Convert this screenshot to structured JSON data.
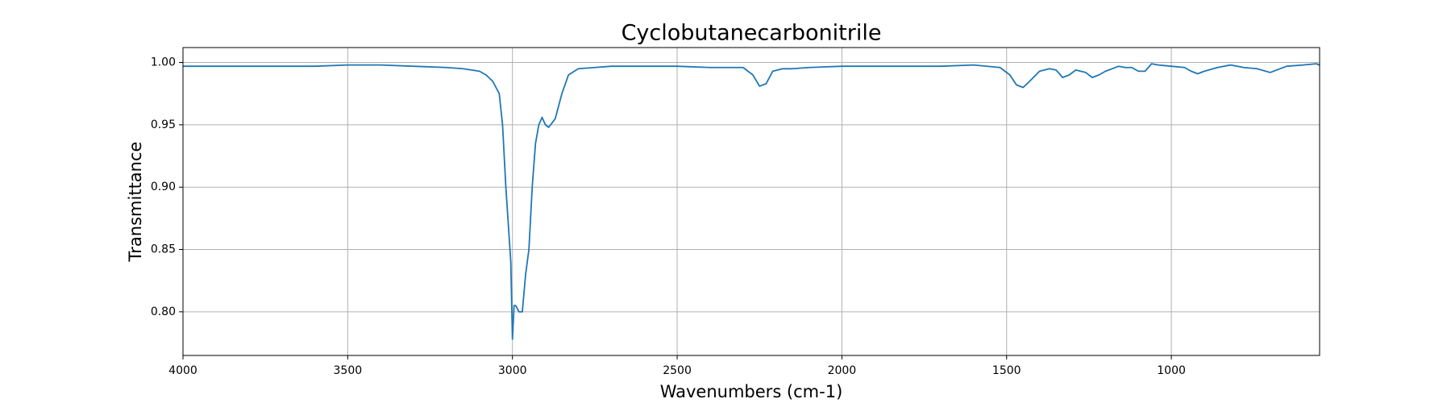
{
  "chart_data": {
    "type": "line",
    "title": "Cyclobutanecarbonitrile",
    "x_label": "Wavenumbers (cm-1)",
    "y_label": "Transmittance",
    "x": [
      4000,
      3950,
      3900,
      3800,
      3700,
      3600,
      3500,
      3400,
      3300,
      3200,
      3150,
      3100,
      3080,
      3060,
      3040,
      3030,
      3020,
      3010,
      3005,
      3000,
      2995,
      2990,
      2980,
      2970,
      2960,
      2950,
      2940,
      2930,
      2920,
      2910,
      2900,
      2890,
      2870,
      2850,
      2830,
      2800,
      2750,
      2700,
      2600,
      2500,
      2400,
      2300,
      2270,
      2250,
      2230,
      2210,
      2180,
      2150,
      2100,
      2000,
      1900,
      1800,
      1700,
      1600,
      1520,
      1490,
      1470,
      1450,
      1430,
      1400,
      1370,
      1350,
      1330,
      1310,
      1290,
      1260,
      1240,
      1220,
      1200,
      1180,
      1160,
      1140,
      1120,
      1100,
      1080,
      1060,
      1040,
      1000,
      960,
      940,
      920,
      900,
      860,
      820,
      780,
      740,
      700,
      680,
      650,
      600,
      560,
      550
    ],
    "series": [
      {
        "color": "#1f77b4",
        "values": [
          0.997,
          0.997,
          0.997,
          0.997,
          0.997,
          0.997,
          0.998,
          0.998,
          0.997,
          0.996,
          0.995,
          0.993,
          0.99,
          0.985,
          0.975,
          0.95,
          0.9,
          0.86,
          0.84,
          0.778,
          0.805,
          0.805,
          0.8,
          0.8,
          0.83,
          0.85,
          0.9,
          0.935,
          0.95,
          0.956,
          0.95,
          0.948,
          0.955,
          0.975,
          0.99,
          0.995,
          0.996,
          0.997,
          0.997,
          0.997,
          0.996,
          0.996,
          0.99,
          0.981,
          0.983,
          0.993,
          0.995,
          0.995,
          0.996,
          0.997,
          0.997,
          0.997,
          0.997,
          0.998,
          0.996,
          0.99,
          0.982,
          0.98,
          0.985,
          0.993,
          0.995,
          0.994,
          0.988,
          0.99,
          0.994,
          0.992,
          0.988,
          0.99,
          0.993,
          0.995,
          0.997,
          0.996,
          0.996,
          0.993,
          0.993,
          0.999,
          0.998,
          0.997,
          0.996,
          0.993,
          0.991,
          0.993,
          0.996,
          0.998,
          0.996,
          0.995,
          0.992,
          0.994,
          0.997,
          0.998,
          0.999,
          0.998
        ]
      }
    ],
    "xlim": [
      4000,
      550
    ],
    "xticks": [
      4000,
      3500,
      3000,
      2500,
      2000,
      1500,
      1000
    ],
    "ylim": [
      0.765,
      1.012
    ],
    "yticks": [
      {
        "value": 0.8,
        "label": "0.80"
      },
      0.85,
      {
        "value": 0.9,
        "label": "0.90"
      },
      0.95,
      {
        "value": 1.0,
        "label": "1.00"
      }
    ],
    "grid": true
  }
}
